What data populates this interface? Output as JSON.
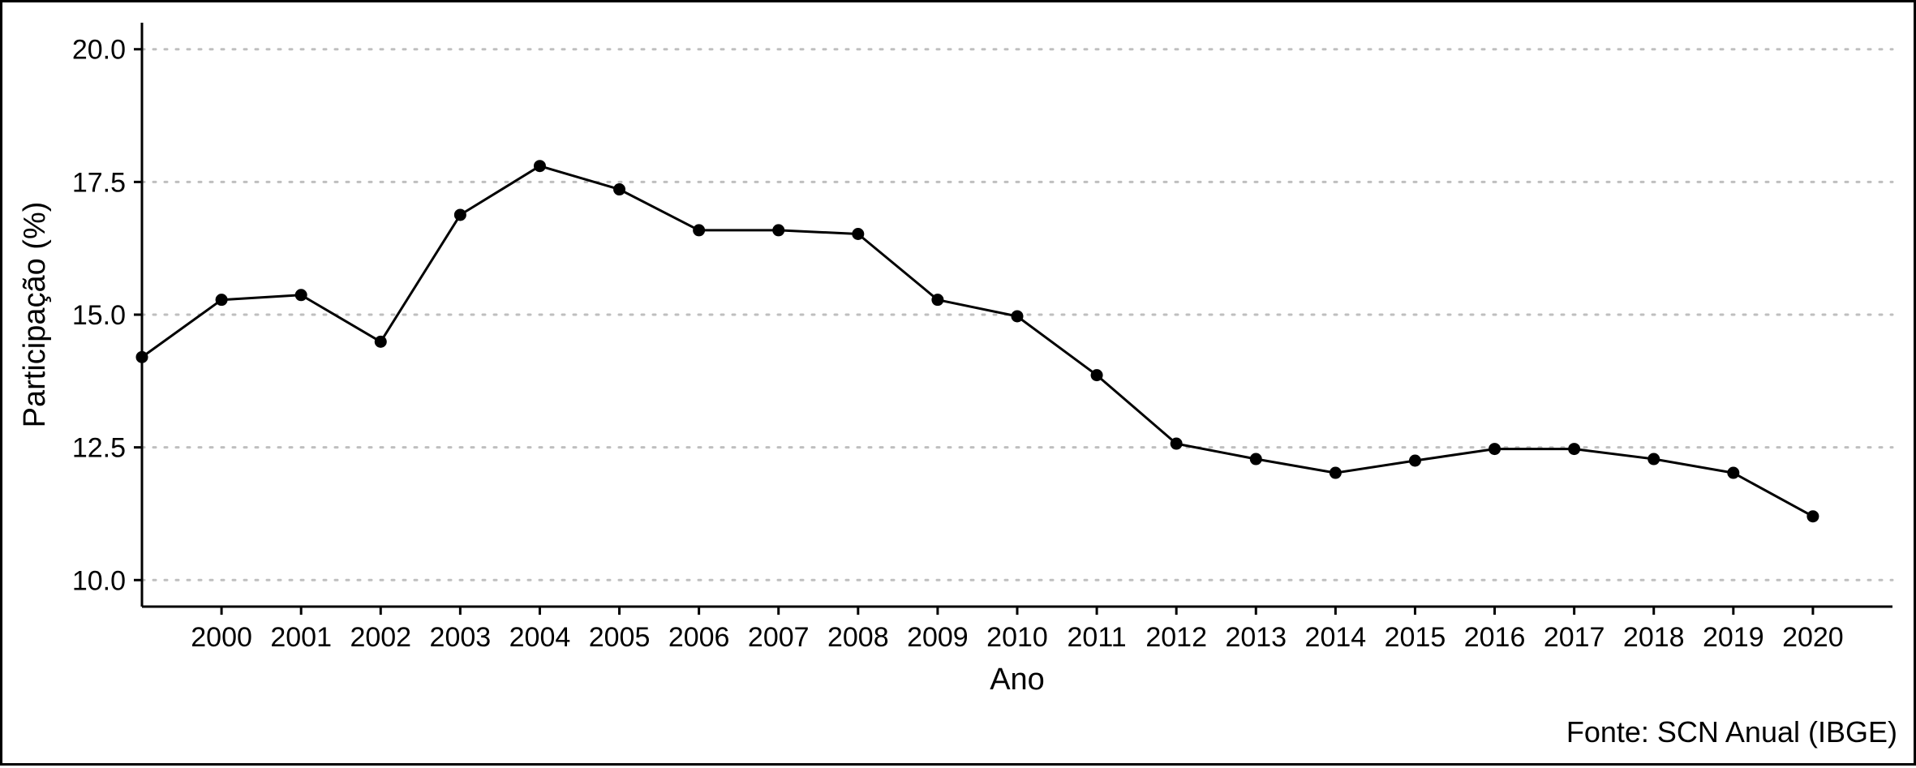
{
  "chart_data": {
    "type": "line",
    "xlabel": "Ano",
    "ylabel": "Participação (%)",
    "caption": "Fonte: SCN Anual (IBGE)",
    "x": [
      1999,
      2000,
      2001,
      2002,
      2003,
      2004,
      2005,
      2006,
      2007,
      2008,
      2009,
      2010,
      2011,
      2012,
      2013,
      2014,
      2015,
      2016,
      2017,
      2018,
      2019,
      2020
    ],
    "x_tick_labels": [
      "2000",
      "2001",
      "2002",
      "2003",
      "2004",
      "2005",
      "2006",
      "2007",
      "2008",
      "2009",
      "2010",
      "2011",
      "2012",
      "2013",
      "2014",
      "2015",
      "2016",
      "2017",
      "2018",
      "2019",
      "2020"
    ],
    "series": [
      {
        "values": [
          14.2,
          15.28,
          15.37,
          14.49,
          16.88,
          17.8,
          17.36,
          16.59,
          16.59,
          16.52,
          15.28,
          14.97,
          13.86,
          12.57,
          12.28,
          12.02,
          12.25,
          12.47,
          12.47,
          12.28,
          12.02,
          11.2
        ]
      }
    ],
    "xlim": [
      1999,
      2021
    ],
    "ylim": [
      9.5,
      20.5
    ],
    "y_ticks": [
      10.0,
      12.5,
      15.0,
      17.5,
      20.0
    ],
    "y_tick_labels": [
      "10.0",
      "12.5",
      "15.0",
      "17.5",
      "20.0"
    ],
    "grid": "horizontal-dotted",
    "legend": "none",
    "colors": {
      "line": "#000000",
      "grid": "#bfbfbf"
    }
  }
}
